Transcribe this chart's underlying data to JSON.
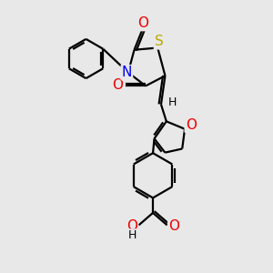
{
  "background_color": "#e8e8e8",
  "line_color": "#000000",
  "bond_width": 1.6,
  "atom_colors": {
    "N": "#0000ee",
    "O": "#ee0000",
    "S": "#bbaa00",
    "H": "#000000"
  },
  "font_size": 10,
  "figsize": [
    3.0,
    3.0
  ],
  "dpi": 100
}
